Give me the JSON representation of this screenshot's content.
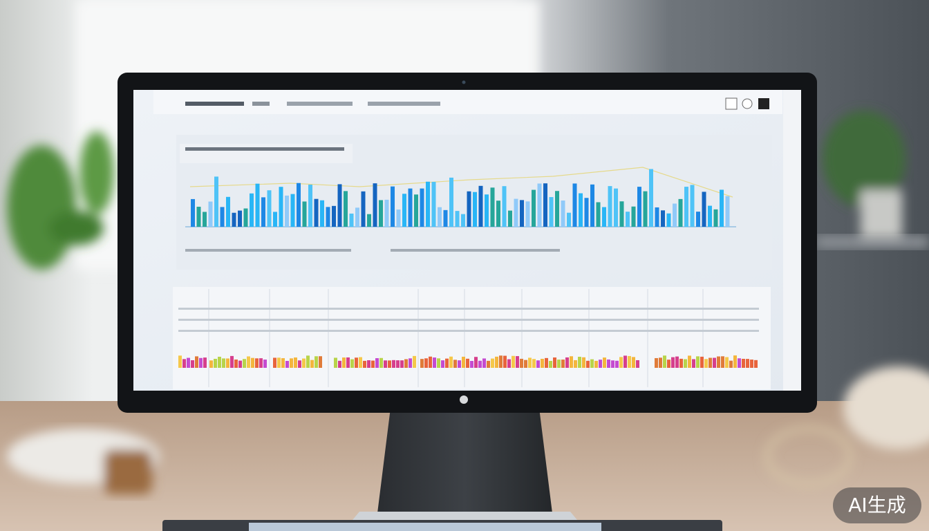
{
  "watermark": "AI生成"
}
